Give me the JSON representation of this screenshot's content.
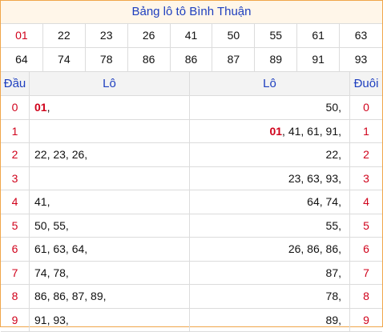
{
  "title": "Bảng lô tô Bình Thuận",
  "numbers_row1": [
    "01",
    "22",
    "23",
    "26",
    "41",
    "50",
    "55",
    "61",
    "63"
  ],
  "numbers_row2": [
    "64",
    "74",
    "78",
    "86",
    "86",
    "87",
    "89",
    "91",
    "93"
  ],
  "headers": {
    "dau": "Đầu",
    "lo_left": "Lô",
    "lo_right": "Lô",
    "duoi": "Đuôi"
  },
  "rows": [
    {
      "dau": "0",
      "left_hl": "01",
      "left": ",",
      "right_hl": "",
      "right": "50,",
      "duoi": "0"
    },
    {
      "dau": "1",
      "left_hl": "",
      "left": "",
      "right_hl": "01",
      "right": ", 41, 61, 91,",
      "duoi": "1"
    },
    {
      "dau": "2",
      "left_hl": "",
      "left": "22, 23, 26,",
      "right_hl": "",
      "right": "22,",
      "duoi": "2"
    },
    {
      "dau": "3",
      "left_hl": "",
      "left": "",
      "right_hl": "",
      "right": "23, 63, 93,",
      "duoi": "3"
    },
    {
      "dau": "4",
      "left_hl": "",
      "left": "41,",
      "right_hl": "",
      "right": "64, 74,",
      "duoi": "4"
    },
    {
      "dau": "5",
      "left_hl": "",
      "left": "50, 55,",
      "right_hl": "",
      "right": "55,",
      "duoi": "5"
    },
    {
      "dau": "6",
      "left_hl": "",
      "left": "61, 63, 64,",
      "right_hl": "",
      "right": "26, 86, 86,",
      "duoi": "6"
    },
    {
      "dau": "7",
      "left_hl": "",
      "left": "74, 78,",
      "right_hl": "",
      "right": "87,",
      "duoi": "7"
    },
    {
      "dau": "8",
      "left_hl": "",
      "left": "86, 86, 87, 89,",
      "right_hl": "",
      "right": "78,",
      "duoi": "8"
    },
    {
      "dau": "9",
      "left_hl": "",
      "left": "91, 93,",
      "right_hl": "",
      "right": "89,",
      "duoi": "9"
    }
  ],
  "colors": {
    "accent_blue": "#1e3fbf",
    "highlight_red": "#d0021b",
    "border_orange": "#f0a64a"
  }
}
